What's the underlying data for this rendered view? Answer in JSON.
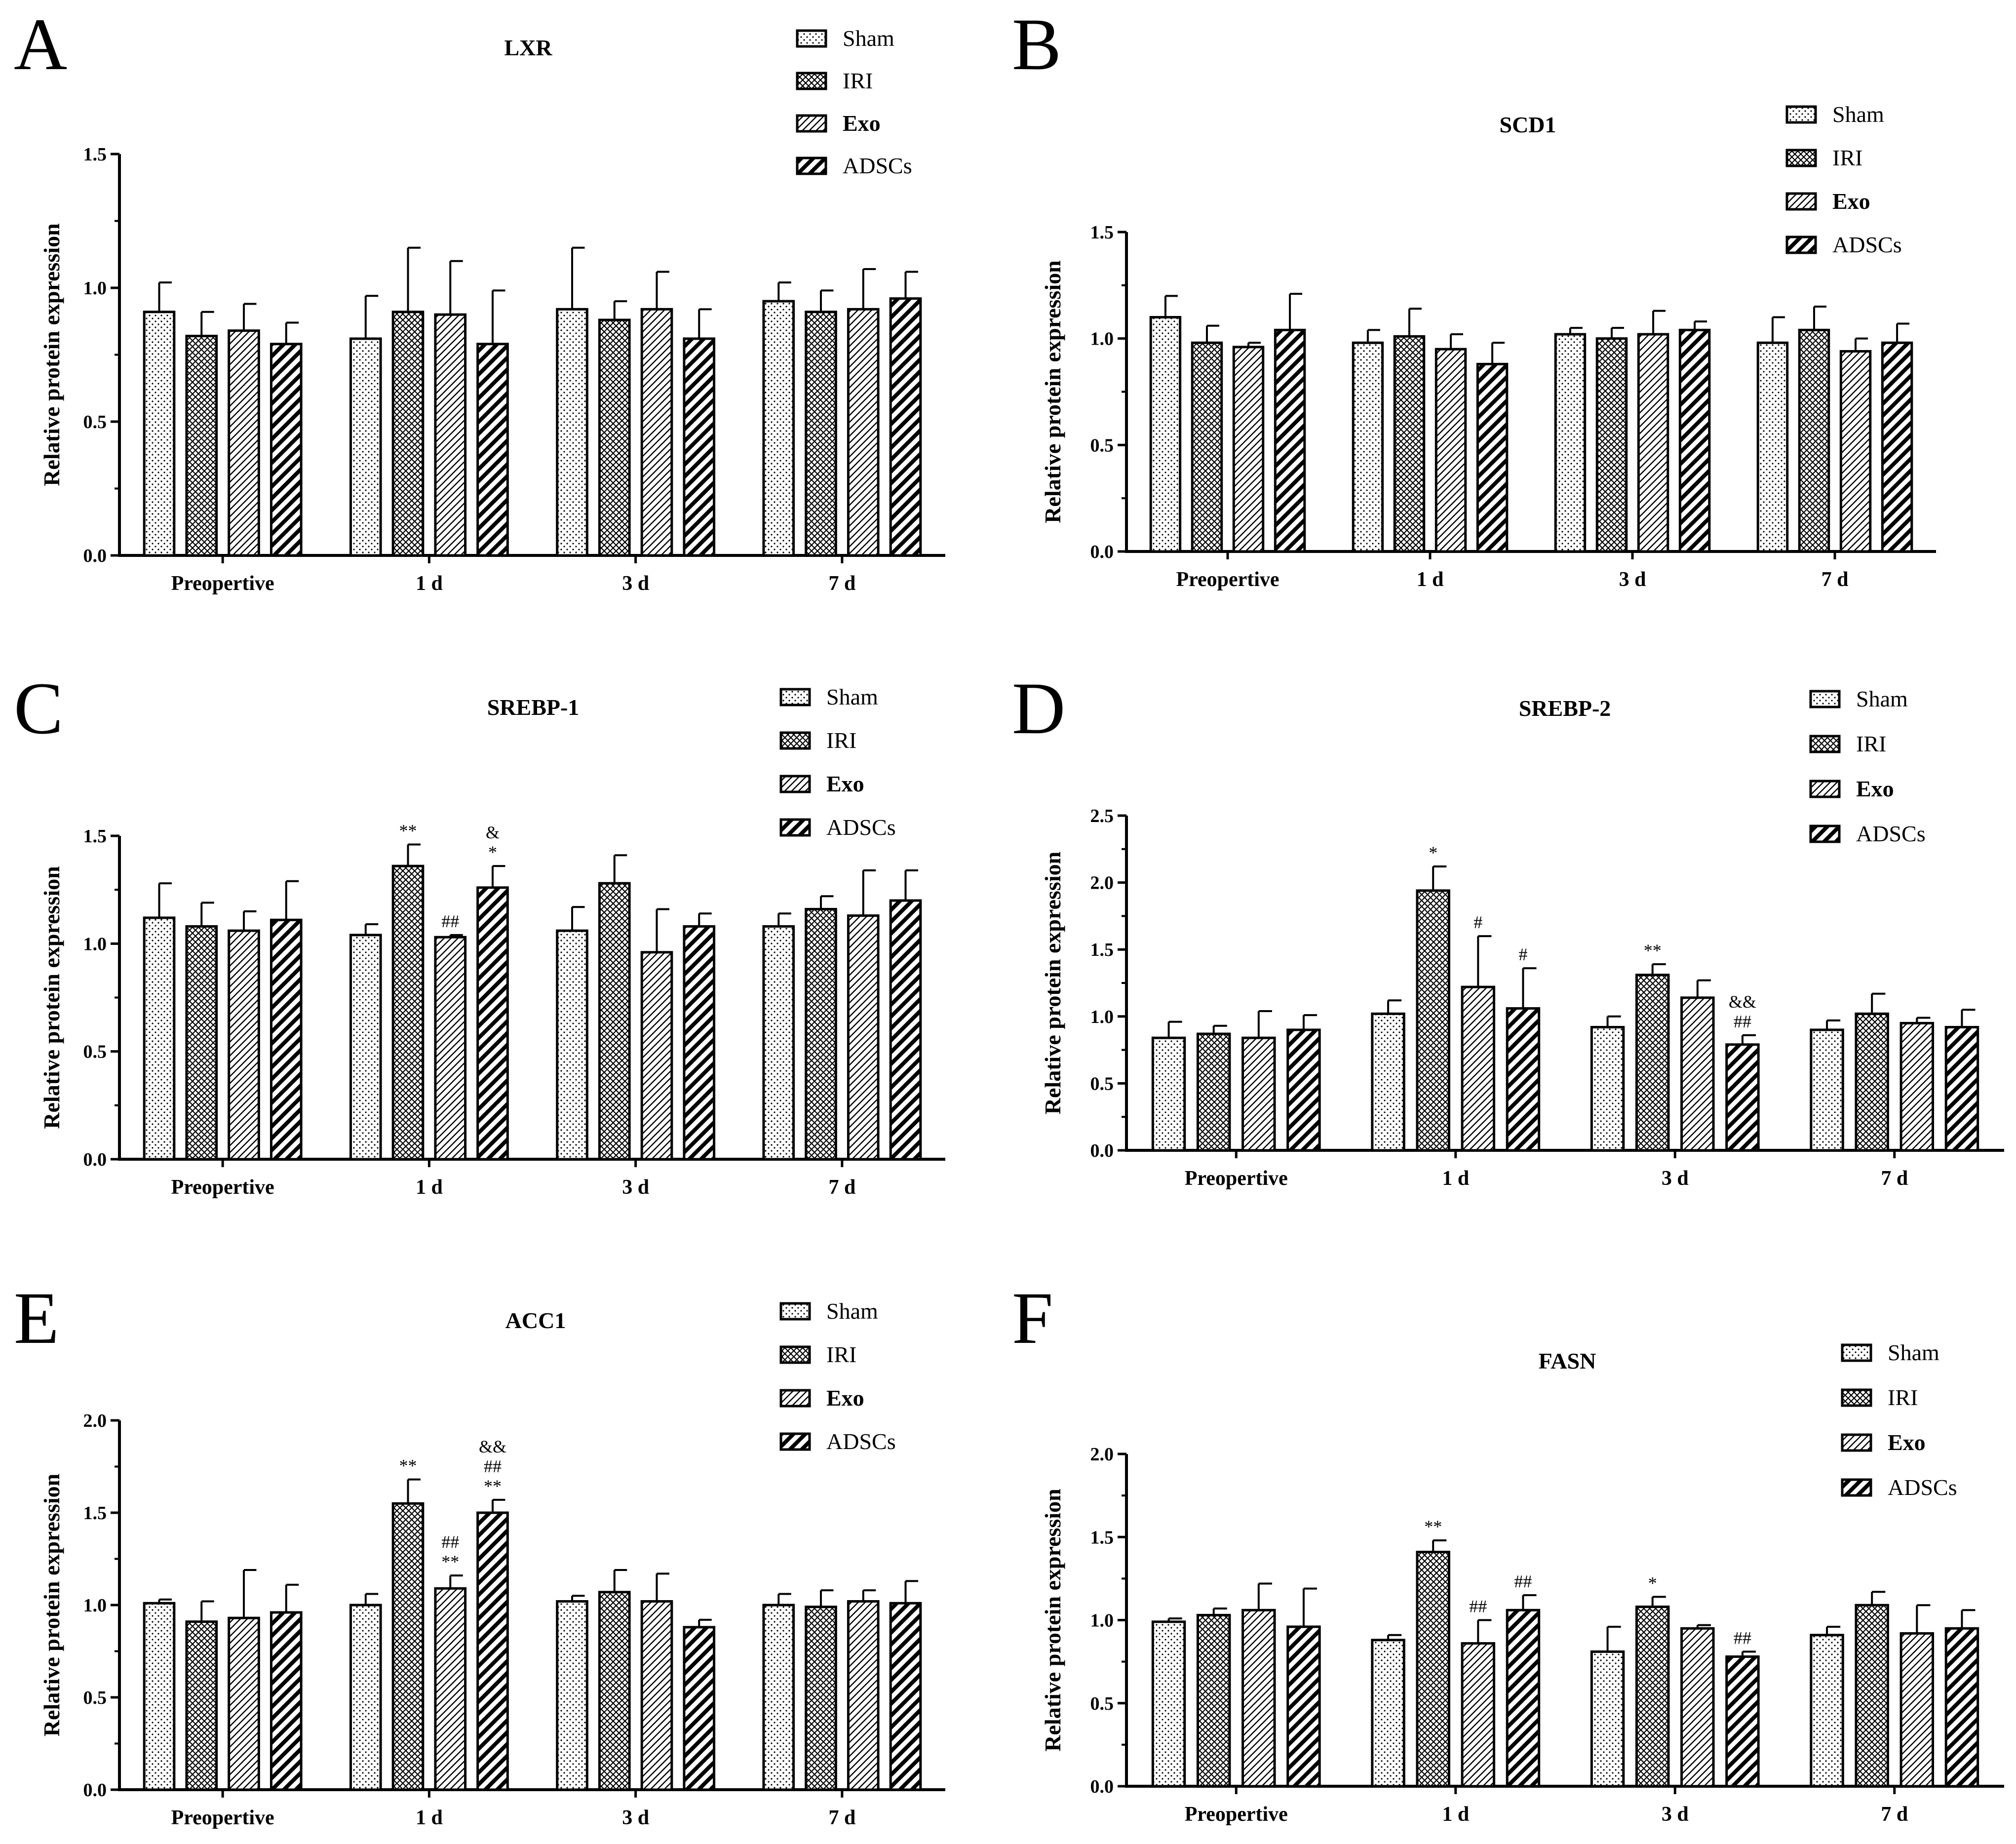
{
  "figure": {
    "legend": [
      "Sham",
      "IRI",
      "Exo",
      "ADSCs"
    ],
    "colors": {
      "ink": "#000000",
      "background": "#ffffff"
    }
  },
  "chart_data": [
    {
      "panel": "A",
      "type": "bar",
      "title": "LXR",
      "categories": [
        "Preopertive",
        "1 d",
        "3 d",
        "7 d"
      ],
      "ylabel": "Relative protein expression",
      "xlabel": "",
      "ylim": [
        0,
        1.5
      ],
      "yticks": [
        "0.0",
        "0.5",
        "1.0",
        "1.5"
      ],
      "ytick_values": [
        0,
        0.5,
        1.0,
        1.5
      ],
      "legend_position": "top-right",
      "series": [
        {
          "name": "Sham",
          "values": [
            0.91,
            0.81,
            0.92,
            0.95
          ],
          "errors": [
            0.11,
            0.16,
            0.23,
            0.07
          ]
        },
        {
          "name": "IRI",
          "values": [
            0.82,
            0.91,
            0.88,
            0.91
          ],
          "errors": [
            0.09,
            0.24,
            0.07,
            0.08
          ]
        },
        {
          "name": "Exo",
          "values": [
            0.84,
            0.9,
            0.92,
            0.92
          ],
          "errors": [
            0.1,
            0.2,
            0.14,
            0.15
          ]
        },
        {
          "name": "ADSCs",
          "values": [
            0.79,
            0.79,
            0.81,
            0.96
          ],
          "errors": [
            0.08,
            0.2,
            0.11,
            0.1
          ]
        }
      ],
      "annotations": []
    },
    {
      "panel": "B",
      "type": "bar",
      "title": "SCD1",
      "categories": [
        "Preopertive",
        "1 d",
        "3 d",
        "7 d"
      ],
      "ylabel": "Relative protein expression",
      "xlabel": "",
      "ylim": [
        0,
        1.5
      ],
      "yticks": [
        "0.0",
        "0.5",
        "1.0",
        "1.5"
      ],
      "ytick_values": [
        0,
        0.5,
        1.0,
        1.5
      ],
      "legend_position": "top-right",
      "series": [
        {
          "name": "Sham",
          "values": [
            1.1,
            0.98,
            1.02,
            0.98
          ],
          "errors": [
            0.1,
            0.06,
            0.03,
            0.12
          ]
        },
        {
          "name": "IRI",
          "values": [
            0.98,
            1.01,
            1.0,
            1.04
          ],
          "errors": [
            0.08,
            0.13,
            0.05,
            0.11
          ]
        },
        {
          "name": "Exo",
          "values": [
            0.96,
            0.95,
            1.02,
            0.94
          ],
          "errors": [
            0.02,
            0.07,
            0.11,
            0.06
          ]
        },
        {
          "name": "ADSCs",
          "values": [
            1.04,
            0.88,
            1.04,
            0.98
          ],
          "errors": [
            0.17,
            0.1,
            0.04,
            0.09
          ]
        }
      ],
      "annotations": []
    },
    {
      "panel": "C",
      "type": "bar",
      "title": "SREBP-1",
      "categories": [
        "Preopertive",
        "1 d",
        "3 d",
        "7 d"
      ],
      "ylabel": "Relative protein expression",
      "xlabel": "",
      "ylim": [
        0,
        1.5
      ],
      "yticks": [
        "0.0",
        "0.5",
        "1.0",
        "1.5"
      ],
      "ytick_values": [
        0,
        0.5,
        1.0,
        1.5
      ],
      "legend_position": "top-right",
      "series": [
        {
          "name": "Sham",
          "values": [
            1.12,
            1.04,
            1.06,
            1.08
          ],
          "errors": [
            0.16,
            0.05,
            0.11,
            0.06
          ]
        },
        {
          "name": "IRI",
          "values": [
            1.08,
            1.36,
            1.28,
            1.16
          ],
          "errors": [
            0.11,
            0.1,
            0.13,
            0.06
          ]
        },
        {
          "name": "Exo",
          "values": [
            1.06,
            1.03,
            0.96,
            1.13
          ],
          "errors": [
            0.09,
            0.01,
            0.2,
            0.21
          ]
        },
        {
          "name": "ADSCs",
          "values": [
            1.11,
            1.26,
            1.08,
            1.2
          ],
          "errors": [
            0.18,
            0.1,
            0.06,
            0.14
          ]
        }
      ],
      "annotations": [
        {
          "category": 1,
          "series": 1,
          "labels": [
            "**"
          ]
        },
        {
          "category": 1,
          "series": 2,
          "labels": [
            "##"
          ]
        },
        {
          "category": 1,
          "series": 3,
          "labels": [
            "*",
            "&"
          ]
        }
      ]
    },
    {
      "panel": "D",
      "type": "bar",
      "title": "SREBP-2",
      "categories": [
        "Preopertive",
        "1 d",
        "3 d",
        "7 d"
      ],
      "ylabel": "Relative protein expression",
      "xlabel": "",
      "ylim": [
        0,
        2.5
      ],
      "yticks": [
        "0.0",
        "0.5",
        "1.0",
        "1.5",
        "2.0",
        "2.5"
      ],
      "ytick_values": [
        0,
        0.5,
        1.0,
        1.5,
        2.0,
        2.5
      ],
      "legend_position": "top-right",
      "series": [
        {
          "name": "Sham",
          "values": [
            0.84,
            1.02,
            0.92,
            0.9
          ],
          "errors": [
            0.12,
            0.1,
            0.08,
            0.07
          ]
        },
        {
          "name": "IRI",
          "values": [
            0.87,
            1.94,
            1.31,
            1.02
          ],
          "errors": [
            0.06,
            0.18,
            0.08,
            0.15
          ]
        },
        {
          "name": "Exo",
          "values": [
            0.84,
            1.22,
            1.14,
            0.95
          ],
          "errors": [
            0.2,
            0.38,
            0.13,
            0.04
          ]
        },
        {
          "name": "ADSCs",
          "values": [
            0.9,
            1.06,
            0.79,
            0.92
          ],
          "errors": [
            0.11,
            0.3,
            0.07,
            0.13
          ]
        }
      ],
      "annotations": [
        {
          "category": 1,
          "series": 1,
          "labels": [
            "*"
          ]
        },
        {
          "category": 1,
          "series": 2,
          "labels": [
            "#"
          ]
        },
        {
          "category": 1,
          "series": 3,
          "labels": [
            "#"
          ]
        },
        {
          "category": 2,
          "series": 1,
          "labels": [
            "**"
          ]
        },
        {
          "category": 2,
          "series": 3,
          "labels": [
            "##",
            "&&"
          ]
        }
      ]
    },
    {
      "panel": "E",
      "type": "bar",
      "title": "ACC1",
      "categories": [
        "Preopertive",
        "1 d",
        "3 d",
        "7 d"
      ],
      "ylabel": "Relative protein expression",
      "xlabel": "",
      "ylim": [
        0,
        2.0
      ],
      "yticks": [
        "0.0",
        "0.5",
        "1.0",
        "1.5",
        "2.0"
      ],
      "ytick_values": [
        0,
        0.5,
        1.0,
        1.5,
        2.0
      ],
      "legend_position": "top-right",
      "series": [
        {
          "name": "Sham",
          "values": [
            1.01,
            1.0,
            1.02,
            1.0
          ],
          "errors": [
            0.02,
            0.06,
            0.03,
            0.06
          ]
        },
        {
          "name": "IRI",
          "values": [
            0.91,
            1.55,
            1.07,
            0.99
          ],
          "errors": [
            0.11,
            0.13,
            0.12,
            0.09
          ]
        },
        {
          "name": "Exo",
          "values": [
            0.93,
            1.09,
            1.02,
            1.02
          ],
          "errors": [
            0.26,
            0.07,
            0.15,
            0.06
          ]
        },
        {
          "name": "ADSCs",
          "values": [
            0.96,
            1.5,
            0.88,
            1.01
          ],
          "errors": [
            0.15,
            0.07,
            0.04,
            0.12
          ]
        }
      ],
      "annotations": [
        {
          "category": 1,
          "series": 1,
          "labels": [
            "**"
          ]
        },
        {
          "category": 1,
          "series": 2,
          "labels": [
            "**",
            "##"
          ]
        },
        {
          "category": 1,
          "series": 3,
          "labels": [
            "**",
            "##",
            "&&"
          ]
        }
      ]
    },
    {
      "panel": "F",
      "type": "bar",
      "title": "FASN",
      "categories": [
        "Preopertive",
        "1 d",
        "3 d",
        "7 d"
      ],
      "ylabel": "Relative protein expression",
      "xlabel": "",
      "ylim": [
        0,
        2.0
      ],
      "yticks": [
        "0.0",
        "0.5",
        "1.0",
        "1.5",
        "2.0"
      ],
      "ytick_values": [
        0,
        0.5,
        1.0,
        1.5,
        2.0
      ],
      "legend_position": "top-right",
      "series": [
        {
          "name": "Sham",
          "values": [
            0.99,
            0.88,
            0.81,
            0.91
          ],
          "errors": [
            0.02,
            0.03,
            0.15,
            0.05
          ]
        },
        {
          "name": "IRI",
          "values": [
            1.03,
            1.41,
            1.08,
            1.09
          ],
          "errors": [
            0.04,
            0.07,
            0.06,
            0.08
          ]
        },
        {
          "name": "Exo",
          "values": [
            1.06,
            0.86,
            0.95,
            0.92
          ],
          "errors": [
            0.16,
            0.14,
            0.02,
            0.17
          ]
        },
        {
          "name": "ADSCs",
          "values": [
            0.96,
            1.06,
            0.78,
            0.95
          ],
          "errors": [
            0.23,
            0.09,
            0.03,
            0.11
          ]
        }
      ],
      "annotations": [
        {
          "category": 1,
          "series": 1,
          "labels": [
            "**"
          ]
        },
        {
          "category": 1,
          "series": 2,
          "labels": [
            "##"
          ]
        },
        {
          "category": 1,
          "series": 3,
          "labels": [
            "##"
          ]
        },
        {
          "category": 2,
          "series": 1,
          "labels": [
            "*"
          ]
        },
        {
          "category": 2,
          "series": 3,
          "labels": [
            "##"
          ]
        }
      ]
    }
  ]
}
